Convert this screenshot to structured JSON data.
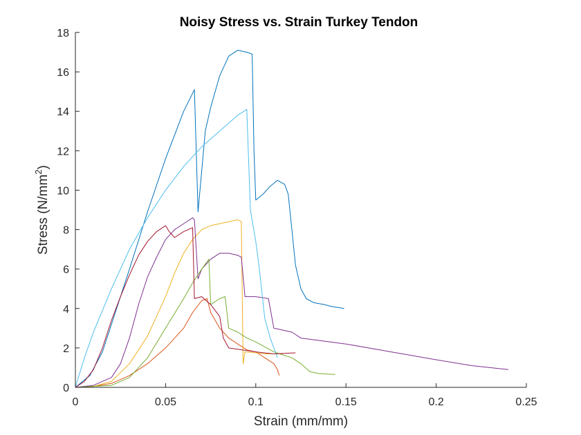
{
  "chart_data": {
    "type": "line",
    "title": "Noisy Stress vs. Strain Turkey Tendon",
    "xlabel": "Strain (mm/mm)",
    "ylabel_main": "Stress (N/mm",
    "ylabel_sup": "2",
    "ylabel_close": ")",
    "xlim": [
      0,
      0.25
    ],
    "ylim": [
      0,
      18
    ],
    "xticks": [
      0,
      0.05,
      0.1,
      0.15,
      0.2,
      0.25
    ],
    "xtick_labels": [
      "0",
      "0.05",
      "0.1",
      "0.15",
      "0.2",
      "0.25"
    ],
    "yticks": [
      0,
      2,
      4,
      6,
      8,
      10,
      12,
      14,
      16,
      18
    ],
    "ytick_labels": [
      "0",
      "2",
      "4",
      "6",
      "8",
      "10",
      "12",
      "14",
      "16",
      "18"
    ],
    "grid": false,
    "series": [
      {
        "color": "#0072BD",
        "points": [
          [
            0,
            0
          ],
          [
            0.008,
            0.6
          ],
          [
            0.015,
            1.8
          ],
          [
            0.02,
            3.2
          ],
          [
            0.03,
            6.0
          ],
          [
            0.04,
            8.9
          ],
          [
            0.05,
            11.6
          ],
          [
            0.06,
            14.0
          ],
          [
            0.066,
            15.1
          ],
          [
            0.068,
            8.9
          ],
          [
            0.072,
            13.0
          ],
          [
            0.075,
            14.2
          ],
          [
            0.08,
            15.8
          ],
          [
            0.085,
            16.8
          ],
          [
            0.09,
            17.1
          ],
          [
            0.095,
            17.0
          ],
          [
            0.098,
            16.9
          ],
          [
            0.099,
            12.0
          ],
          [
            0.1,
            9.5
          ],
          [
            0.104,
            9.8
          ],
          [
            0.108,
            10.2
          ],
          [
            0.112,
            10.5
          ],
          [
            0.116,
            10.3
          ],
          [
            0.118,
            9.8
          ],
          [
            0.12,
            8.0
          ],
          [
            0.122,
            6.2
          ],
          [
            0.125,
            5.0
          ],
          [
            0.128,
            4.5
          ],
          [
            0.132,
            4.3
          ],
          [
            0.138,
            4.2
          ],
          [
            0.142,
            4.1
          ],
          [
            0.149,
            4.0
          ]
        ]
      },
      {
        "color": "#D95319",
        "points": [
          [
            0,
            0
          ],
          [
            0.01,
            0.05
          ],
          [
            0.02,
            0.2
          ],
          [
            0.03,
            0.6
          ],
          [
            0.04,
            1.2
          ],
          [
            0.05,
            2.0
          ],
          [
            0.06,
            3.0
          ],
          [
            0.065,
            3.8
          ],
          [
            0.07,
            4.4
          ],
          [
            0.073,
            4.5
          ],
          [
            0.075,
            3.8
          ],
          [
            0.08,
            3.0
          ],
          [
            0.085,
            2.5
          ],
          [
            0.09,
            2.2
          ],
          [
            0.095,
            1.9
          ],
          [
            0.1,
            1.8
          ],
          [
            0.105,
            1.5
          ],
          [
            0.11,
            1.2
          ],
          [
            0.112,
            0.9
          ],
          [
            0.113,
            0.6
          ]
        ]
      },
      {
        "color": "#EDB120",
        "points": [
          [
            0,
            0
          ],
          [
            0.01,
            0.05
          ],
          [
            0.02,
            0.3
          ],
          [
            0.03,
            1.2
          ],
          [
            0.04,
            2.6
          ],
          [
            0.05,
            4.6
          ],
          [
            0.055,
            5.8
          ],
          [
            0.06,
            6.8
          ],
          [
            0.065,
            7.5
          ],
          [
            0.07,
            8.0
          ],
          [
            0.075,
            8.2
          ],
          [
            0.08,
            8.3
          ],
          [
            0.085,
            8.4
          ],
          [
            0.09,
            8.5
          ],
          [
            0.092,
            8.4
          ],
          [
            0.093,
            1.2
          ],
          [
            0.094,
            1.8
          ],
          [
            0.1,
            1.75
          ],
          [
            0.105,
            1.7
          ],
          [
            0.11,
            1.7
          ],
          [
            0.115,
            1.7
          ]
        ]
      },
      {
        "color": "#7E2F8E",
        "points": [
          [
            0,
            0
          ],
          [
            0.01,
            0.1
          ],
          [
            0.02,
            0.5
          ],
          [
            0.025,
            1.2
          ],
          [
            0.03,
            2.5
          ],
          [
            0.035,
            4.2
          ],
          [
            0.04,
            5.6
          ],
          [
            0.045,
            6.6
          ],
          [
            0.05,
            7.5
          ],
          [
            0.055,
            8.0
          ],
          [
            0.06,
            8.3
          ],
          [
            0.065,
            8.6
          ],
          [
            0.066,
            8.5
          ],
          [
            0.068,
            5.5
          ],
          [
            0.07,
            6.0
          ],
          [
            0.075,
            6.5
          ],
          [
            0.08,
            6.8
          ],
          [
            0.085,
            6.8
          ],
          [
            0.09,
            6.7
          ],
          [
            0.092,
            6.6
          ],
          [
            0.094,
            4.6
          ],
          [
            0.1,
            4.6
          ],
          [
            0.107,
            4.5
          ],
          [
            0.11,
            3.0
          ],
          [
            0.12,
            2.8
          ],
          [
            0.125,
            2.5
          ],
          [
            0.15,
            2.2
          ],
          [
            0.175,
            1.8
          ],
          [
            0.2,
            1.4
          ],
          [
            0.22,
            1.1
          ],
          [
            0.24,
            0.9
          ]
        ]
      },
      {
        "color": "#77AC30",
        "points": [
          [
            0,
            0
          ],
          [
            0.02,
            0.1
          ],
          [
            0.03,
            0.5
          ],
          [
            0.04,
            1.5
          ],
          [
            0.05,
            3.0
          ],
          [
            0.06,
            4.5
          ],
          [
            0.065,
            5.3
          ],
          [
            0.07,
            6.0
          ],
          [
            0.074,
            6.5
          ],
          [
            0.075,
            4.2
          ],
          [
            0.08,
            4.5
          ],
          [
            0.083,
            4.6
          ],
          [
            0.085,
            3.0
          ],
          [
            0.09,
            2.8
          ],
          [
            0.095,
            2.5
          ],
          [
            0.1,
            2.3
          ],
          [
            0.11,
            1.8
          ],
          [
            0.12,
            1.5
          ],
          [
            0.125,
            1.2
          ],
          [
            0.13,
            0.8
          ],
          [
            0.135,
            0.7
          ],
          [
            0.144,
            0.65
          ]
        ]
      },
      {
        "color": "#4DBEEE",
        "points": [
          [
            0,
            0
          ],
          [
            0.005,
            1.5
          ],
          [
            0.01,
            2.8
          ],
          [
            0.02,
            5.0
          ],
          [
            0.03,
            7.0
          ],
          [
            0.04,
            8.6
          ],
          [
            0.05,
            10.0
          ],
          [
            0.06,
            11.2
          ],
          [
            0.07,
            12.2
          ],
          [
            0.08,
            13.0
          ],
          [
            0.09,
            13.8
          ],
          [
            0.095,
            14.1
          ],
          [
            0.097,
            9.0
          ],
          [
            0.1,
            7.4
          ],
          [
            0.102,
            6.0
          ],
          [
            0.105,
            3.5
          ],
          [
            0.108,
            2.5
          ],
          [
            0.11,
            2.0
          ],
          [
            0.112,
            1.5
          ]
        ]
      },
      {
        "color": "#A2142F",
        "points": [
          [
            0,
            0
          ],
          [
            0.005,
            0.3
          ],
          [
            0.01,
            0.9
          ],
          [
            0.015,
            2.0
          ],
          [
            0.02,
            3.4
          ],
          [
            0.025,
            4.6
          ],
          [
            0.03,
            5.7
          ],
          [
            0.035,
            6.7
          ],
          [
            0.04,
            7.4
          ],
          [
            0.045,
            7.9
          ],
          [
            0.05,
            8.2
          ],
          [
            0.052,
            7.9
          ],
          [
            0.055,
            7.6
          ],
          [
            0.06,
            7.9
          ],
          [
            0.065,
            8.1
          ],
          [
            0.066,
            4.5
          ],
          [
            0.07,
            4.6
          ],
          [
            0.075,
            4.2
          ],
          [
            0.08,
            3.6
          ],
          [
            0.082,
            2.5
          ],
          [
            0.085,
            2.0
          ],
          [
            0.1,
            1.8
          ],
          [
            0.11,
            1.7
          ],
          [
            0.122,
            1.75
          ]
        ]
      }
    ]
  }
}
